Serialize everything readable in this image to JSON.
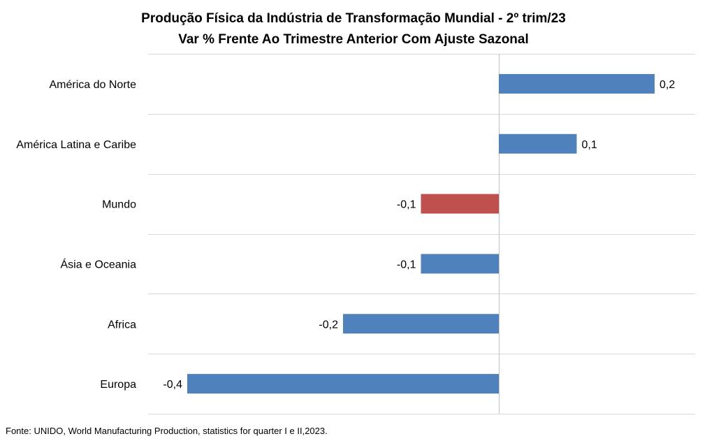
{
  "chart_data": {
    "type": "bar",
    "orientation": "horizontal",
    "title": "Produção Física da Indústria de Transformação Mundial - 2º trim/23",
    "subtitle": "Var % Frente Ao Trimestre Anterior Com Ajuste Sazonal",
    "categories": [
      "América do Norte",
      "América Latina e Caribe",
      "Mundo",
      "Ásia e Oceania",
      "Africa",
      "Europa"
    ],
    "values": [
      0.2,
      0.1,
      -0.1,
      -0.1,
      -0.2,
      -0.4
    ],
    "value_labels": [
      "0,2",
      "0,1",
      "-0,1",
      "-0,1",
      "-0,2",
      "-0,4"
    ],
    "bar_colors": [
      "#4F81BD",
      "#4F81BD",
      "#C0504D",
      "#4F81BD",
      "#4F81BD",
      "#4F81BD"
    ],
    "xlim": [
      -0.4,
      0.25
    ],
    "xlabel": "",
    "ylabel": "",
    "grid": true,
    "legend": "none",
    "gridline_color": "#D9D9D9",
    "axis_color": "#BFBFBF"
  },
  "source_note": "Fonte: UNIDO, World Manufacturing Production,  statistics for quarter  I e II,2023."
}
